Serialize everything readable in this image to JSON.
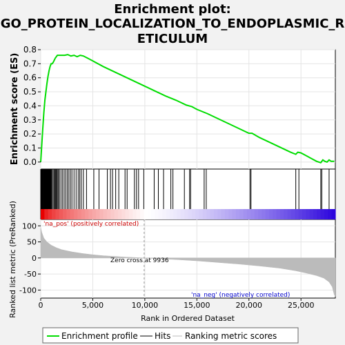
{
  "chart_data": {
    "type": "line",
    "title": "Enrichment plot:\nGO_PROTEIN_LOCALIZATION_TO_ENDOPLASMIC_R\nETICULUM",
    "title_lines": [
      "Enrichment plot:",
      "GO_PROTEIN_LOCALIZATION_TO_ENDOPLASMIC_R",
      "ETICULUM"
    ],
    "xlabel": "Rank in Ordered Dataset",
    "ylabel_top": "Enrichment score (ES)",
    "ylabel_bottom": "Ranked list metric (PreRanked)",
    "x_ticks": [
      0,
      5000,
      10000,
      15000,
      20000,
      25000
    ],
    "x_tick_labels": [
      "0",
      "5,000",
      "10,000",
      "15,000",
      "20,000",
      "25,000"
    ],
    "xlim": [
      0,
      28300
    ],
    "es_ticks": [
      0.0,
      0.1,
      0.2,
      0.3,
      0.4,
      0.5,
      0.6,
      0.7,
      0.8
    ],
    "es_tick_labels": [
      "0.0",
      "0.1",
      "0.2",
      "0.3",
      "0.4",
      "0.5",
      "0.6",
      "0.7",
      "0.8"
    ],
    "es_ylim": [
      -0.05,
      0.8
    ],
    "metric_ticks": [
      100,
      50,
      0,
      -50,
      -100
    ],
    "metric_tick_labels": [
      "100",
      "50",
      "0",
      "-50",
      "-100"
    ],
    "metric_ylim": [
      -125,
      120
    ],
    "pos_label": "'na_pos' (positively correlated)",
    "neg_label": "'na_neg' (negatively correlated)",
    "zero_cross_label": "Zero cross at 9936",
    "zero_cross": 9936,
    "legend": [
      {
        "name": "Enrichment profile",
        "color": "#00dd00"
      },
      {
        "name": "Hits",
        "color": "#000000"
      },
      {
        "name": "Ranking metric scores",
        "color": "#bbbbbb"
      }
    ],
    "colors": {
      "es_line": "#00dd00",
      "hits": "#000000",
      "metric_fill": "#bbbbbb",
      "pos_text": "#cc0000",
      "neg_text": "#0000cc"
    },
    "es_curve": {
      "x": [
        0,
        100,
        200,
        300,
        400,
        500,
        600,
        700,
        800,
        900,
        1000,
        1100,
        1200,
        1400,
        1600,
        1800,
        2000,
        2300,
        2600,
        2900,
        3200,
        3500,
        3800,
        4100,
        4500,
        5000,
        6000,
        7000,
        8000,
        9000,
        10000,
        11000,
        12000,
        13000,
        14000,
        14500,
        15000,
        16000,
        17000,
        18000,
        19000,
        20000,
        20300,
        21000,
        22000,
        23000,
        24000,
        24500,
        24700,
        25000,
        25500,
        26000,
        26500,
        26900,
        27100,
        27300,
        27500,
        27700,
        27900,
        28200
      ],
      "y": [
        0.0,
        0.12,
        0.24,
        0.35,
        0.44,
        0.5,
        0.56,
        0.61,
        0.65,
        0.68,
        0.7,
        0.7,
        0.71,
        0.74,
        0.76,
        0.76,
        0.76,
        0.76,
        0.765,
        0.755,
        0.76,
        0.75,
        0.76,
        0.755,
        0.74,
        0.72,
        0.68,
        0.645,
        0.61,
        0.575,
        0.54,
        0.505,
        0.47,
        0.44,
        0.405,
        0.395,
        0.375,
        0.345,
        0.31,
        0.275,
        0.24,
        0.205,
        0.205,
        0.175,
        0.14,
        0.105,
        0.07,
        0.055,
        0.07,
        0.065,
        0.045,
        0.025,
        0.005,
        -0.005,
        0.015,
        0.005,
        0.0,
        0.015,
        0.005,
        0.005
      ]
    },
    "hits": [
      20,
      60,
      100,
      140,
      180,
      220,
      260,
      300,
      340,
      380,
      420,
      460,
      500,
      540,
      580,
      620,
      660,
      700,
      740,
      780,
      820,
      860,
      900,
      940,
      980,
      1020,
      1100,
      1200,
      1300,
      1380,
      1450,
      1520,
      1600,
      1700,
      1800,
      1950,
      2100,
      2250,
      2400,
      2550,
      2700,
      2850,
      3000,
      3200,
      3400,
      3600,
      3750,
      3900,
      4100,
      4400,
      5100,
      5600,
      6400,
      6700,
      6900,
      7200,
      7500,
      8100,
      8300,
      9000,
      9200,
      9400,
      9900,
      10900,
      11300,
      11800,
      12500,
      12700,
      13800,
      14300,
      14400,
      15700,
      15900,
      20100,
      20200,
      24500,
      24800,
      26900,
      27000,
      27700
    ],
    "metric_curve": {
      "x": [
        0,
        100,
        300,
        600,
        1000,
        1500,
        2000,
        3000,
        4000,
        5000,
        6000,
        7000,
        8000,
        9000,
        9936,
        11000,
        13000,
        15000,
        17000,
        19000,
        21000,
        23000,
        24500,
        25500,
        26500,
        27200,
        27700,
        28000,
        28200,
        28300
      ],
      "y": [
        95,
        80,
        62,
        50,
        40,
        32,
        26,
        19,
        14,
        10,
        7,
        5,
        3,
        1.5,
        0,
        -2,
        -5,
        -9,
        -14,
        -19,
        -25,
        -32,
        -40,
        -47,
        -55,
        -63,
        -75,
        -90,
        -115,
        -120
      ]
    }
  }
}
